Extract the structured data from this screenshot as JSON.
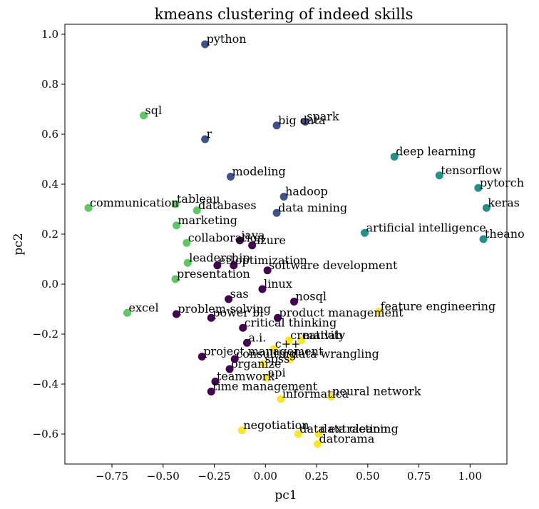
{
  "chart_data": {
    "type": "scatter",
    "title": "kmeans clustering of indeed skills",
    "xlabel": "pc1",
    "ylabel": "pc2",
    "xlim": [
      -0.98,
      1.18
    ],
    "ylim": [
      -0.72,
      1.04
    ],
    "xticks": [
      -0.75,
      -0.5,
      -0.25,
      0.0,
      0.25,
      0.5,
      0.75,
      1.0
    ],
    "xtick_labels": [
      "−0.75",
      "−0.50",
      "−0.25",
      "0.00",
      "0.25",
      "0.50",
      "0.75",
      "1.00"
    ],
    "yticks": [
      -0.6,
      -0.4,
      -0.2,
      0.0,
      0.2,
      0.4,
      0.6,
      0.8,
      1.0
    ],
    "ytick_labels": [
      "−0.6",
      "−0.4",
      "−0.2",
      "0.0",
      "0.2",
      "0.4",
      "0.6",
      "0.8",
      "1.0"
    ],
    "grid": false,
    "legend": "none",
    "cluster_colors": [
      "#440154",
      "#3b528b",
      "#21918c",
      "#5ec962",
      "#fde725"
    ],
    "points": [
      {
        "label": "python",
        "x": -0.295,
        "y": 0.96,
        "cluster": 1
      },
      {
        "label": "spark",
        "x": 0.195,
        "y": 0.65,
        "cluster": 1
      },
      {
        "label": "big data",
        "x": 0.055,
        "y": 0.635,
        "cluster": 1
      },
      {
        "label": "r",
        "x": -0.295,
        "y": 0.58,
        "cluster": 1
      },
      {
        "label": "modeling",
        "x": -0.17,
        "y": 0.43,
        "cluster": 1
      },
      {
        "label": "hadoop",
        "x": 0.09,
        "y": 0.35,
        "cluster": 1
      },
      {
        "label": "data mining",
        "x": 0.055,
        "y": 0.285,
        "cluster": 1
      },
      {
        "label": "deep learning",
        "x": 0.63,
        "y": 0.51,
        "cluster": 2
      },
      {
        "label": "tensorflow",
        "x": 0.85,
        "y": 0.435,
        "cluster": 2
      },
      {
        "label": "pytorch",
        "x": 1.04,
        "y": 0.385,
        "cluster": 2
      },
      {
        "label": "keras",
        "x": 1.08,
        "y": 0.305,
        "cluster": 2
      },
      {
        "label": "artificial intelligence",
        "x": 0.485,
        "y": 0.205,
        "cluster": 2
      },
      {
        "label": "theano",
        "x": 1.065,
        "y": 0.18,
        "cluster": 2
      },
      {
        "label": "sql",
        "x": -0.595,
        "y": 0.675,
        "cluster": 3
      },
      {
        "label": "communication",
        "x": -0.865,
        "y": 0.305,
        "cluster": 3
      },
      {
        "label": "tableau",
        "x": -0.44,
        "y": 0.32,
        "cluster": 3
      },
      {
        "label": "databases",
        "x": -0.335,
        "y": 0.295,
        "cluster": 3
      },
      {
        "label": "marketing",
        "x": -0.435,
        "y": 0.235,
        "cluster": 3
      },
      {
        "label": "collaboration",
        "x": -0.385,
        "y": 0.165,
        "cluster": 3
      },
      {
        "label": "leadership",
        "x": -0.38,
        "y": 0.085,
        "cluster": 3
      },
      {
        "label": "presentation",
        "x": -0.44,
        "y": 0.02,
        "cluster": 3
      },
      {
        "label": "excel",
        "x": -0.675,
        "y": -0.115,
        "cluster": 3
      },
      {
        "label": "java",
        "x": -0.125,
        "y": 0.175,
        "cluster": 0
      },
      {
        "label": "azure",
        "x": -0.065,
        "y": 0.155,
        "cluster": 0
      },
      {
        "label": "etl",
        "x": -0.235,
        "y": 0.075,
        "cluster": 0
      },
      {
        "label": "optimization",
        "x": -0.155,
        "y": 0.075,
        "cluster": 0
      },
      {
        "label": "software development",
        "x": 0.01,
        "y": 0.055,
        "cluster": 0
      },
      {
        "label": "linux",
        "x": -0.015,
        "y": -0.02,
        "cluster": 0
      },
      {
        "label": "sas",
        "x": -0.18,
        "y": -0.06,
        "cluster": 0
      },
      {
        "label": "nosql",
        "x": 0.14,
        "y": -0.07,
        "cluster": 0
      },
      {
        "label": "problem-solving",
        "x": -0.435,
        "y": -0.12,
        "cluster": 0
      },
      {
        "label": "power bi",
        "x": -0.265,
        "y": -0.135,
        "cluster": 0
      },
      {
        "label": "product management",
        "x": 0.06,
        "y": -0.135,
        "cluster": 0
      },
      {
        "label": "critical thinking",
        "x": -0.11,
        "y": -0.175,
        "cluster": 0
      },
      {
        "label": "a.i.",
        "x": -0.09,
        "y": -0.235,
        "cluster": 0
      },
      {
        "label": "project management",
        "x": -0.31,
        "y": -0.29,
        "cluster": 0
      },
      {
        "label": "consulting",
        "x": -0.15,
        "y": -0.3,
        "cluster": 0
      },
      {
        "label": "organize",
        "x": -0.175,
        "y": -0.34,
        "cluster": 0
      },
      {
        "label": "teamwork",
        "x": -0.245,
        "y": -0.39,
        "cluster": 0
      },
      {
        "label": "time management",
        "x": -0.265,
        "y": -0.43,
        "cluster": 0
      },
      {
        "label": "feature engineering",
        "x": 0.555,
        "y": -0.11,
        "cluster": 4
      },
      {
        "label": "creativity",
        "x": 0.115,
        "y": -0.225,
        "cluster": 4
      },
      {
        "label": "matlab",
        "x": 0.175,
        "y": -0.225,
        "cluster": 4
      },
      {
        "label": "c++",
        "x": 0.04,
        "y": -0.26,
        "cluster": 4
      },
      {
        "label": "spss",
        "x": -0.01,
        "y": -0.32,
        "cluster": 4
      },
      {
        "label": "data wrangling",
        "x": 0.12,
        "y": -0.3,
        "cluster": 4
      },
      {
        "label": "api",
        "x": 0.005,
        "y": -0.375,
        "cluster": 4
      },
      {
        "label": "informatica",
        "x": 0.075,
        "y": -0.46,
        "cluster": 4
      },
      {
        "label": "neural network",
        "x": 0.32,
        "y": -0.45,
        "cluster": 4
      },
      {
        "label": "negotiation",
        "x": -0.115,
        "y": -0.585,
        "cluster": 4
      },
      {
        "label": "data extraction",
        "x": 0.16,
        "y": -0.6,
        "cluster": 4
      },
      {
        "label": "data cleaning",
        "x": 0.26,
        "y": -0.6,
        "cluster": 4
      },
      {
        "label": "datorama",
        "x": 0.255,
        "y": -0.64,
        "cluster": 4
      }
    ]
  }
}
